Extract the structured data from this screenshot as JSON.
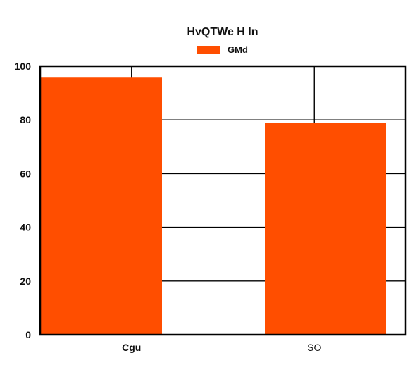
{
  "colors": {
    "bar": "#ff4e00",
    "grid": "#000000",
    "frame": "#000000",
    "background": "#ffffff"
  },
  "chart_data": {
    "type": "bar",
    "title": "HvQTWe H In",
    "xlabel": "",
    "ylabel": "",
    "categories": [
      "Cgu",
      "SO"
    ],
    "series": [
      {
        "name": "GMd",
        "values": [
          96,
          79
        ]
      }
    ],
    "ylim": [
      0,
      100
    ],
    "yticks": [
      0,
      20,
      40,
      60,
      80,
      100
    ],
    "grid": true,
    "legend_position": "top-center"
  }
}
